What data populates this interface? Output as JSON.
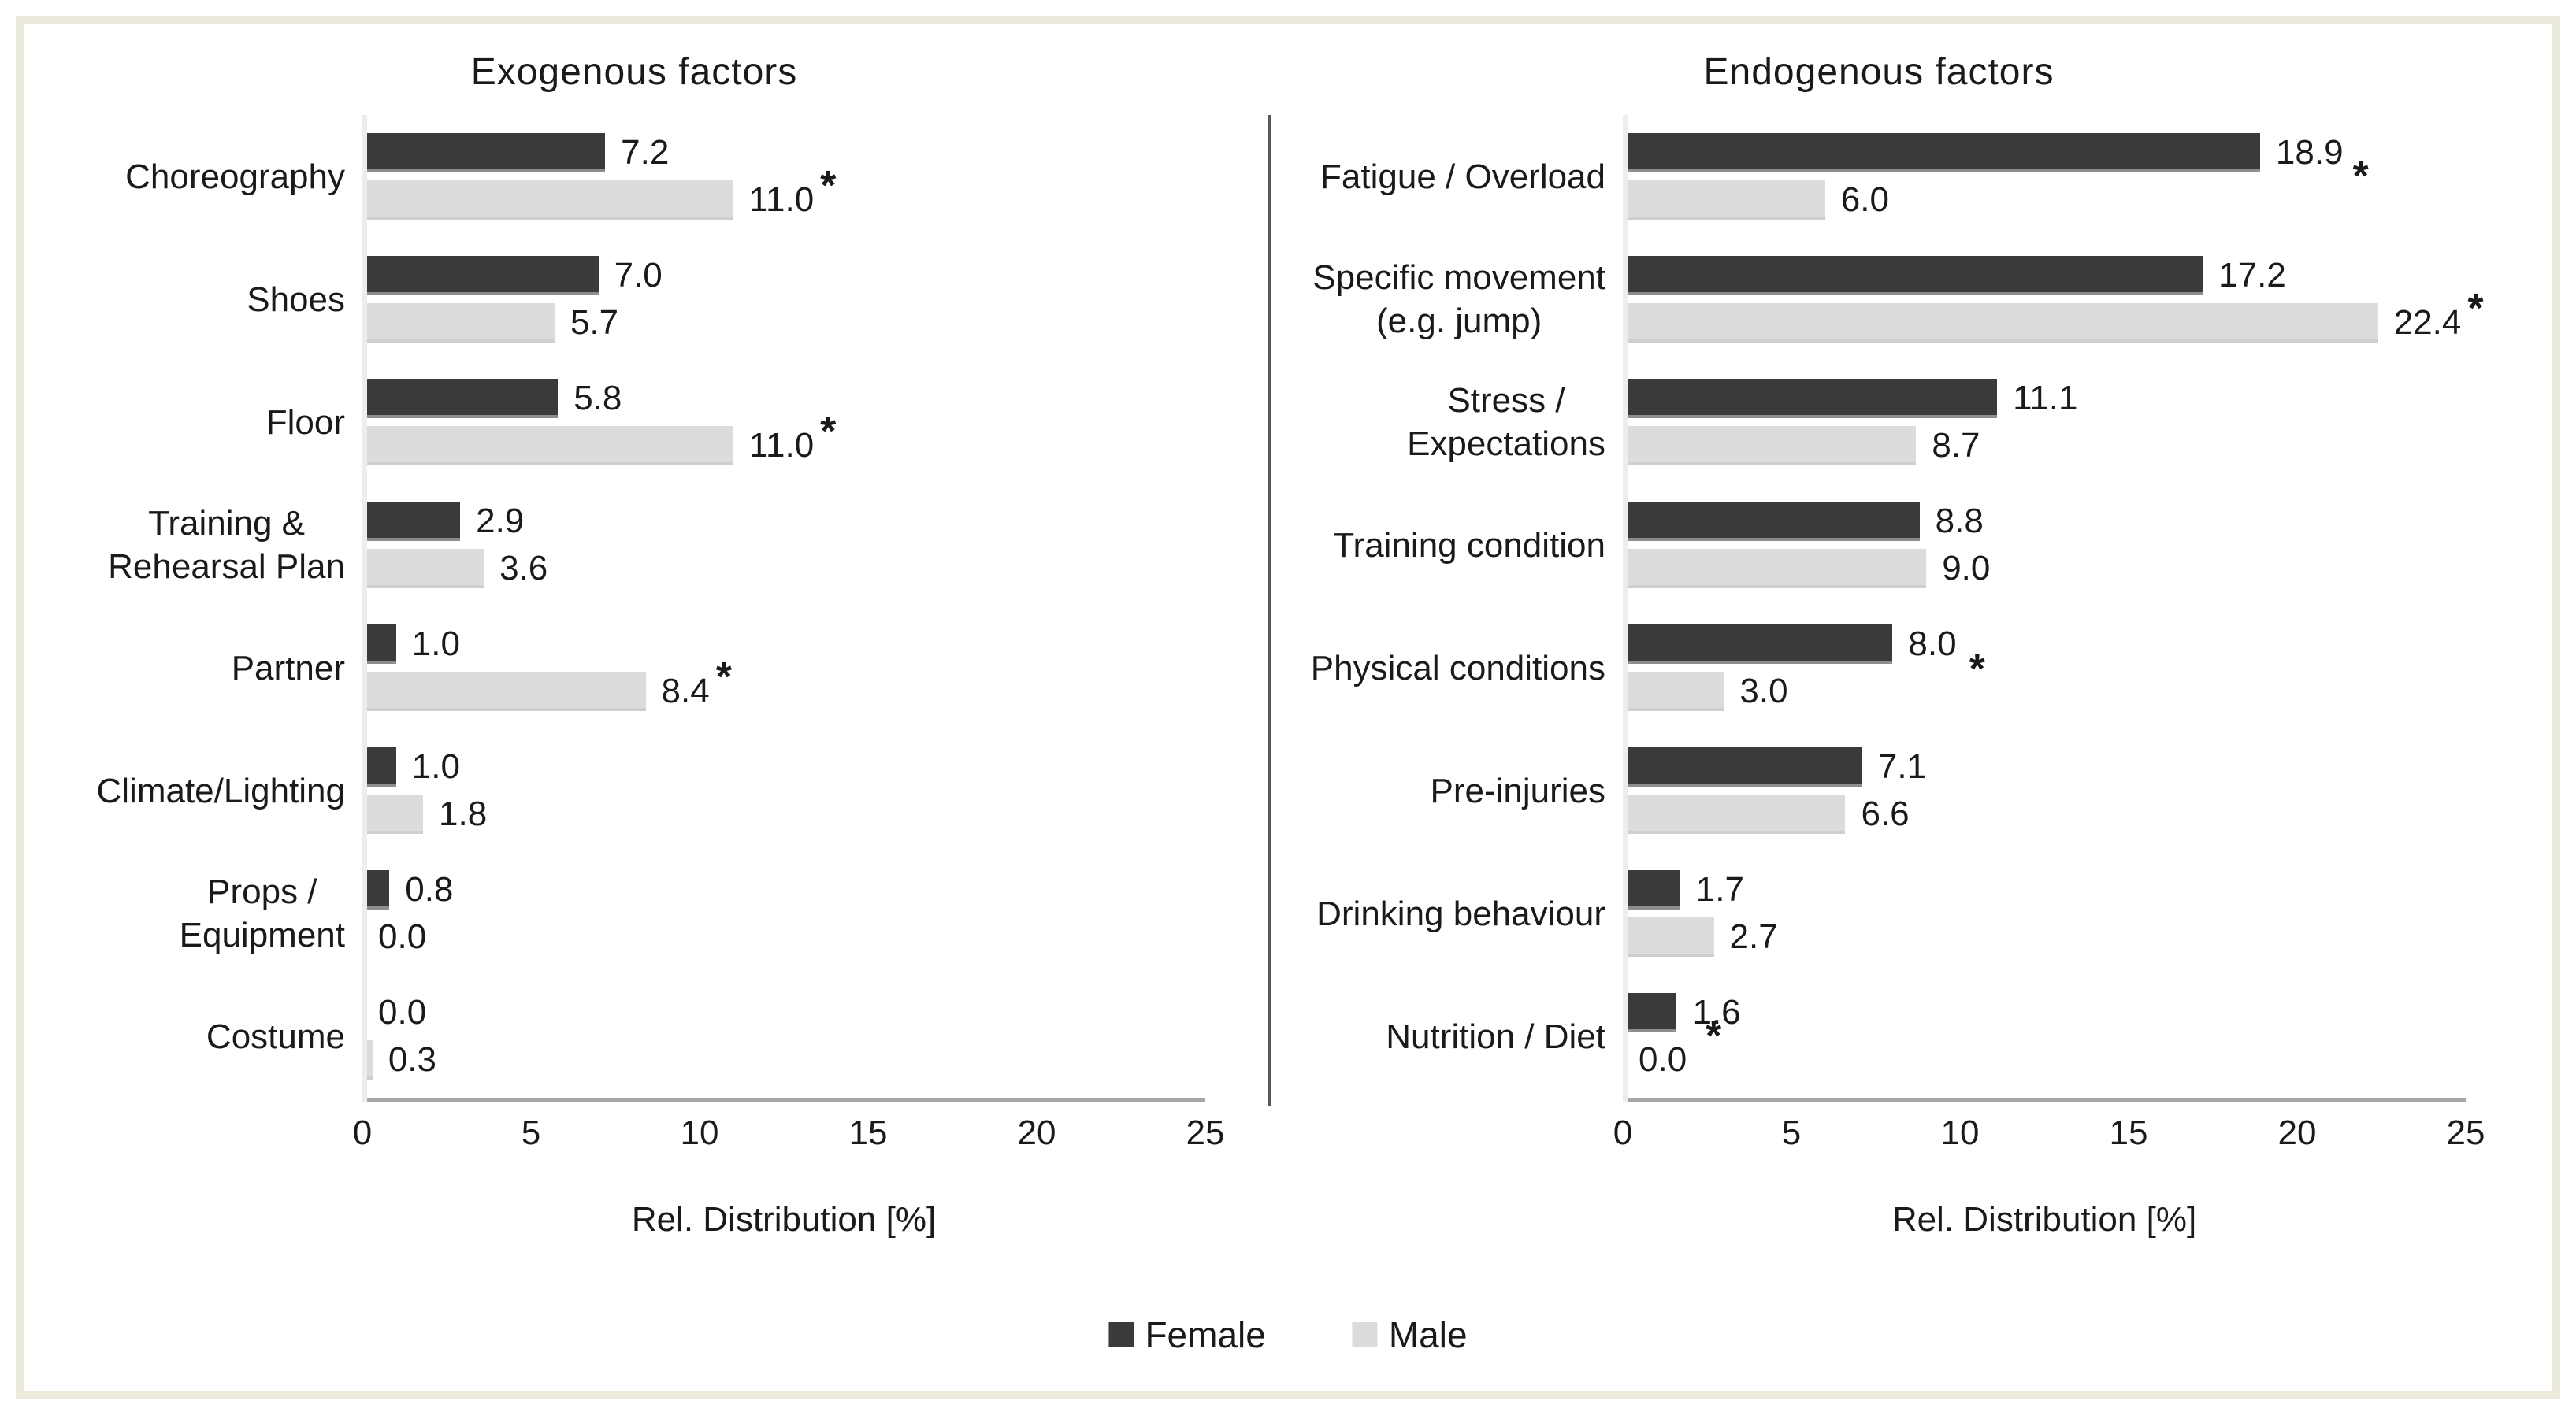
{
  "legend": {
    "items": [
      {
        "label": "Female",
        "color": "#3a3a3a"
      },
      {
        "label": "Male",
        "color": "#dcdcdc"
      }
    ],
    "position": "bottom"
  },
  "chart_data": [
    {
      "type": "bar",
      "orientation": "horizontal",
      "title": "Exogenous factors",
      "xlabel": "Rel. Distribution [%]",
      "xlim": [
        0,
        25
      ],
      "xticks": [
        0,
        5,
        10,
        15,
        20,
        25
      ],
      "grid": false,
      "categories": [
        "Choreography",
        "Shoes",
        "Floor",
        "Training &\nRehearsal Plan",
        "Partner",
        "Climate/Lighting",
        "Props /\nEquipment",
        "Costume"
      ],
      "series": [
        {
          "name": "Female",
          "color": "#3a3a3a",
          "values": [
            7.2,
            7.0,
            5.8,
            2.9,
            1.0,
            1.0,
            0.8,
            0.0
          ]
        },
        {
          "name": "Male",
          "color": "#dcdcdc",
          "values": [
            11.0,
            5.7,
            11.0,
            3.6,
            8.4,
            1.8,
            0.0,
            0.3
          ]
        }
      ],
      "significance_marker": "*",
      "significance": [
        {
          "series": "Male",
          "placement": "above"
        },
        null,
        {
          "series": "Male",
          "placement": "above"
        },
        null,
        {
          "series": "Male",
          "placement": "above"
        },
        null,
        null,
        null
      ]
    },
    {
      "type": "bar",
      "orientation": "horizontal",
      "title": "Endogenous factors",
      "xlabel": "Rel. Distribution [%]",
      "xlim": [
        0,
        25
      ],
      "xticks": [
        0,
        5,
        10,
        15,
        20,
        25
      ],
      "grid": false,
      "categories": [
        "Fatigue / Overload",
        "Specific movement\n(e.g. jump)",
        "Stress /\nExpectations",
        "Training condition",
        "Physical conditions",
        "Pre-injuries",
        "Drinking behaviour",
        "Nutrition / Diet"
      ],
      "series": [
        {
          "name": "Female",
          "color": "#3a3a3a",
          "values": [
            18.9,
            17.2,
            11.1,
            8.8,
            8.0,
            7.1,
            1.7,
            1.6
          ]
        },
        {
          "name": "Male",
          "color": "#dcdcdc",
          "values": [
            6.0,
            22.4,
            8.7,
            9.0,
            3.0,
            6.6,
            2.7,
            0.0
          ]
        }
      ],
      "significance_marker": "*",
      "significance": [
        {
          "series": "Female",
          "placement": "below"
        },
        {
          "series": "Male",
          "placement": "above"
        },
        null,
        null,
        {
          "series": "Male",
          "placement": "above-offset"
        },
        null,
        null,
        {
          "series": "Male",
          "placement": "above-near"
        }
      ]
    }
  ]
}
